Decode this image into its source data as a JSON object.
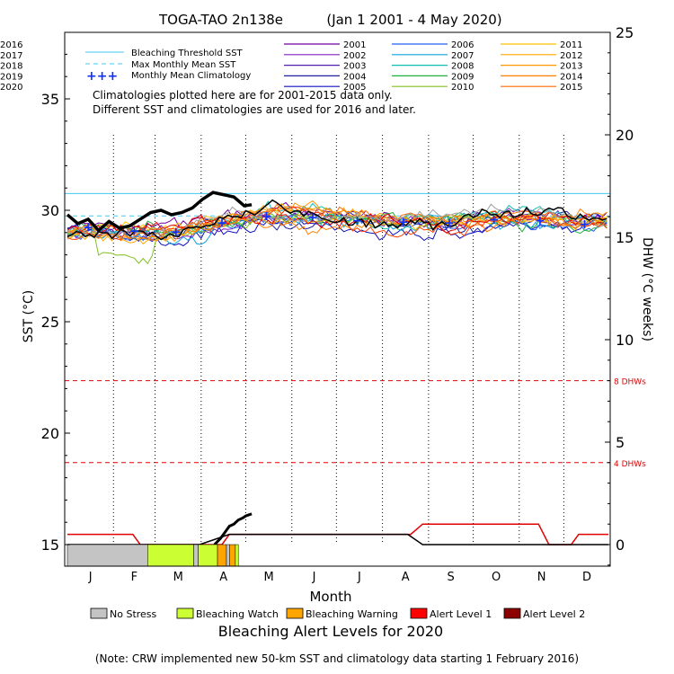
{
  "chart_data": {
    "type": "line",
    "title": "TOGA-TAO 2n138e",
    "subtitle": "(Jan 1 2001 - 4 May 2020)",
    "xlabel": "Month",
    "ylabel": "SST (°C)",
    "y2label": "DHW (°C weeks)",
    "x_ticks": [
      "J",
      "F",
      "M",
      "A",
      "M",
      "J",
      "J",
      "A",
      "S",
      "O",
      "N",
      "D"
    ],
    "x_range_days": [
      1,
      365
    ],
    "ylim": [
      14,
      39
    ],
    "y_ticks": [
      15,
      20,
      25,
      30,
      35
    ],
    "y2lim": [
      -1,
      24
    ],
    "y2_ticks": [
      0,
      5,
      10,
      15,
      20,
      25
    ],
    "grid": "vertical dotted lines at month boundaries",
    "legend_placement": "top-left",
    "annotation": [
      "Climatologies plotted here are for 2001-2015 data only.",
      "Different SST and climatologies are used for 2016 and later."
    ],
    "reference_lines": [
      {
        "name": "Bleaching Threshold SST",
        "value_sst": 30.75,
        "color": "#40c8f0",
        "style": "solid"
      },
      {
        "name": "Max Monthly Mean SST",
        "value_sst": 29.75,
        "color": "#40c8f0",
        "style": "dashed"
      },
      {
        "name": "8 DHWs",
        "value_dhw": 8,
        "color": "#e00000",
        "style": "dashed"
      },
      {
        "name": "4 DHWs",
        "value_dhw": 4,
        "color": "#e00000",
        "style": "dashed"
      }
    ],
    "monthly_mean_climatology": {
      "name": "Monthly Mean Climatology",
      "color": "#1030ff",
      "marker": "+",
      "days": [
        15,
        46,
        74,
        105,
        135,
        166,
        196,
        227,
        258,
        288,
        319,
        349
      ],
      "sst": [
        29.25,
        29.1,
        29.05,
        29.45,
        29.75,
        29.7,
        29.55,
        29.5,
        29.45,
        29.6,
        29.55,
        29.4
      ]
    },
    "series": [
      {
        "name": "2001",
        "color": "#7000a0"
      },
      {
        "name": "2002",
        "color": "#8020c0"
      },
      {
        "name": "2003",
        "color": "#5020b0"
      },
      {
        "name": "2004",
        "color": "#2020a0"
      },
      {
        "name": "2005",
        "color": "#1010c0"
      },
      {
        "name": "2006",
        "color": "#2060f0"
      },
      {
        "name": "2007",
        "color": "#10a0e0"
      },
      {
        "name": "2008",
        "color": "#10c0b0"
      },
      {
        "name": "2009",
        "color": "#20b040"
      },
      {
        "name": "2010",
        "color": "#80c020"
      },
      {
        "name": "2011",
        "color": "#ffc000"
      },
      {
        "name": "2012",
        "color": "#ffa800"
      },
      {
        "name": "2013",
        "color": "#ff9800"
      },
      {
        "name": "2014",
        "color": "#ff8000"
      },
      {
        "name": "2015",
        "color": "#ff6a00"
      },
      {
        "name": "2016",
        "color": "#ff4000"
      },
      {
        "name": "2017",
        "color": "#e80000"
      },
      {
        "name": "2018",
        "color": "#a0a0a0"
      },
      {
        "name": "2019",
        "color": "#000000"
      },
      {
        "name": "2020",
        "color": "#000000",
        "emphasis": true,
        "days": [
          1,
          8,
          15,
          22,
          29,
          36,
          43,
          50,
          57,
          64,
          71,
          78,
          85,
          92,
          99,
          106,
          113,
          120,
          125
        ],
        "sst": [
          29.8,
          29.4,
          29.6,
          29.1,
          29.5,
          29.2,
          29.3,
          29.6,
          29.9,
          30.0,
          29.8,
          29.9,
          30.1,
          30.5,
          30.8,
          30.7,
          30.6,
          30.2,
          30.25
        ],
        "dhw_days": [
          100,
          104,
          107,
          110,
          113,
          116,
          119,
          121,
          123,
          125
        ],
        "dhw": [
          0.0,
          0.3,
          0.6,
          0.9,
          1.0,
          1.2,
          1.3,
          1.4,
          1.45,
          1.5
        ]
      }
    ],
    "dhw_series_2019": {
      "name": "2019",
      "color": "#000000",
      "days": [
        1,
        90,
        110,
        230,
        240,
        365
      ],
      "dhw": [
        0,
        0,
        0.5,
        0.5,
        0,
        0
      ]
    },
    "dhw_series_2017": {
      "name": "2017",
      "color": "#e00000",
      "days": [
        1,
        45,
        50,
        105,
        110,
        232,
        240,
        318,
        325,
        340,
        345,
        365
      ],
      "dhw": [
        0.5,
        0.5,
        0,
        0,
        0.5,
        0.5,
        1.0,
        1.0,
        0,
        0,
        0.5,
        0.5
      ]
    },
    "alert_bar": {
      "title": "Bleaching Alert Levels for 2020",
      "segments": [
        {
          "start": 1,
          "end": 55,
          "level": "No Stress"
        },
        {
          "start": 55,
          "end": 86,
          "level": "Bleaching Watch"
        },
        {
          "start": 86,
          "end": 89,
          "level": "No Stress"
        },
        {
          "start": 89,
          "end": 102,
          "level": "Bleaching Watch"
        },
        {
          "start": 102,
          "end": 108,
          "level": "Bleaching Warning"
        },
        {
          "start": 108,
          "end": 110,
          "level": "No Stress"
        },
        {
          "start": 110,
          "end": 114,
          "level": "Bleaching Warning"
        },
        {
          "start": 114,
          "end": 116,
          "level": "Bleaching Watch"
        }
      ]
    },
    "alert_legend": [
      {
        "label": "No Stress",
        "color": "#c4c4c4"
      },
      {
        "label": "Bleaching Watch",
        "color": "#ccff33"
      },
      {
        "label": "Bleaching Warning",
        "color": "#ffa500"
      },
      {
        "label": "Alert Level 1",
        "color": "#ff0000"
      },
      {
        "label": "Alert Level 2",
        "color": "#8b0000"
      }
    ],
    "legend_ref_entries": [
      {
        "label": "Bleaching Threshold SST"
      },
      {
        "label": "Max Monthly Mean SST"
      },
      {
        "label": "Monthly Mean Climatology",
        "symbol": "+++"
      }
    ],
    "dhw_tags": [
      "8 DHWs",
      "4 DHWs"
    ],
    "note": "(Note: CRW implemented new 50-km SST and climatology data starting 1 February 2016)"
  }
}
